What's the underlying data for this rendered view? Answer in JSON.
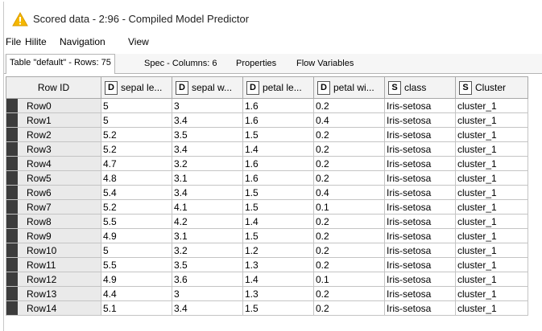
{
  "window": {
    "title": "Scored data - 2:96 - Compiled Model Predictor",
    "accent_warning_color": "#f5b800"
  },
  "menu": [
    "File",
    "Hilite",
    "Navigation",
    "View"
  ],
  "tabs": [
    "Table \"default\" - Rows: 75",
    "Spec - Columns: 6",
    "Properties",
    "Flow Variables"
  ],
  "table": {
    "rowid_header": "Row ID",
    "columns": [
      {
        "type": "D",
        "label": "sepal le..."
      },
      {
        "type": "D",
        "label": "sepal w..."
      },
      {
        "type": "D",
        "label": "petal le..."
      },
      {
        "type": "D",
        "label": "petal wi..."
      },
      {
        "type": "S",
        "label": "class"
      },
      {
        "type": "S",
        "label": "Cluster"
      }
    ],
    "rows": [
      {
        "id": "Row0",
        "cells": [
          "5",
          "3",
          "1.6",
          "0.2",
          "Iris-setosa",
          "cluster_1"
        ]
      },
      {
        "id": "Row1",
        "cells": [
          "5",
          "3.4",
          "1.6",
          "0.4",
          "Iris-setosa",
          "cluster_1"
        ]
      },
      {
        "id": "Row2",
        "cells": [
          "5.2",
          "3.5",
          "1.5",
          "0.2",
          "Iris-setosa",
          "cluster_1"
        ]
      },
      {
        "id": "Row3",
        "cells": [
          "5.2",
          "3.4",
          "1.4",
          "0.2",
          "Iris-setosa",
          "cluster_1"
        ]
      },
      {
        "id": "Row4",
        "cells": [
          "4.7",
          "3.2",
          "1.6",
          "0.2",
          "Iris-setosa",
          "cluster_1"
        ]
      },
      {
        "id": "Row5",
        "cells": [
          "4.8",
          "3.1",
          "1.6",
          "0.2",
          "Iris-setosa",
          "cluster_1"
        ]
      },
      {
        "id": "Row6",
        "cells": [
          "5.4",
          "3.4",
          "1.5",
          "0.4",
          "Iris-setosa",
          "cluster_1"
        ]
      },
      {
        "id": "Row7",
        "cells": [
          "5.2",
          "4.1",
          "1.5",
          "0.1",
          "Iris-setosa",
          "cluster_1"
        ]
      },
      {
        "id": "Row8",
        "cells": [
          "5.5",
          "4.2",
          "1.4",
          "0.2",
          "Iris-setosa",
          "cluster_1"
        ]
      },
      {
        "id": "Row9",
        "cells": [
          "4.9",
          "3.1",
          "1.5",
          "0.2",
          "Iris-setosa",
          "cluster_1"
        ]
      },
      {
        "id": "Row10",
        "cells": [
          "5",
          "3.2",
          "1.2",
          "0.2",
          "Iris-setosa",
          "cluster_1"
        ]
      },
      {
        "id": "Row11",
        "cells": [
          "5.5",
          "3.5",
          "1.3",
          "0.2",
          "Iris-setosa",
          "cluster_1"
        ]
      },
      {
        "id": "Row12",
        "cells": [
          "4.9",
          "3.6",
          "1.4",
          "0.1",
          "Iris-setosa",
          "cluster_1"
        ]
      },
      {
        "id": "Row13",
        "cells": [
          "4.4",
          "3",
          "1.3",
          "0.2",
          "Iris-setosa",
          "cluster_1"
        ]
      },
      {
        "id": "Row14",
        "cells": [
          "5.1",
          "3.4",
          "1.5",
          "0.2",
          "Iris-setosa",
          "cluster_1"
        ]
      }
    ]
  }
}
